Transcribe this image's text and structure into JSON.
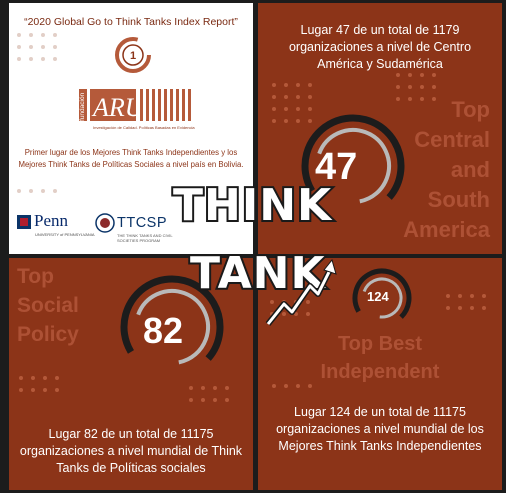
{
  "report": {
    "title": "“2020 Global Go to Think Tanks Index Report”",
    "org_name": "fundación ARU",
    "org_tagline": "Investigación de Calidad. Políticas Basadas en Evidencia",
    "badge_number": "1",
    "primer_lugar": "Primer lugar de los Mejores Think Tanks Independientes y los Mejores Think Tanks de Políticas Sociales a nivel país en Bolivia.",
    "penn_name": "Penn",
    "penn_sub": "UNIVERSITY of PENNSYLVANIA",
    "ttcsp_name": "TTCSP",
    "ttcsp_sub": "THE THINK TANKS AND CIVIL SOCIETIES PROGRAM"
  },
  "central": {
    "text": "Lugar 47 de un total de 1179 organizaciones a nivel de Centro América y Sudamérica",
    "number": "47",
    "label_lines": [
      "Top",
      "Central",
      "and",
      "South",
      "America"
    ]
  },
  "social": {
    "label_lines": [
      "Top",
      "Social",
      "Policy"
    ],
    "number": "82",
    "text": "Lugar 82 de un total de 11175 organizaciones a nivel mundial de Think Tanks de Políticas sociales"
  },
  "independent": {
    "number": "124",
    "label_lines": [
      "Top Best",
      "Independent"
    ],
    "text": "Lugar 124 de un total de 11175 organizaciones a nivel mundial de los Mejores Think Tanks Independientes"
  },
  "overlay": {
    "think": "THINK",
    "tank": "TANK"
  },
  "colors": {
    "panel": "#8c3418",
    "accent": "#c0603d",
    "background": "#1c1c1c"
  }
}
